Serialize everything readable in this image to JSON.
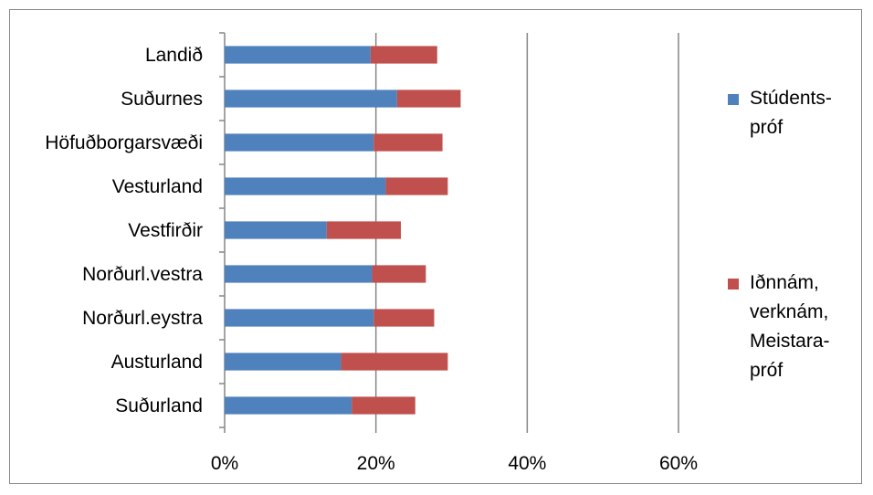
{
  "chart_data": {
    "type": "bar",
    "orientation": "horizontal",
    "stacked": true,
    "categories": [
      "Landið",
      "Suðurnes",
      "Höfuðborgarsvæði",
      "Vesturland",
      "Vestfirðir",
      "Norðurl.vestra",
      "Norðurl.eystra",
      "Austurland",
      "Suðurland"
    ],
    "series": [
      {
        "name": "Stúdents-\npróf",
        "color": "#4f81bd",
        "values": [
          19.3,
          22.8,
          19.7,
          21.3,
          13.5,
          19.5,
          19.7,
          15.4,
          16.8
        ]
      },
      {
        "name": "Iðnnám,\nverknám,\nMeistara-\npróf",
        "color": "#c0504d",
        "values": [
          8.8,
          8.4,
          9.1,
          8.2,
          9.8,
          7.1,
          8.0,
          14.1,
          8.4
        ]
      }
    ],
    "xticks": [
      "0%",
      "20%",
      "40%",
      "60%"
    ],
    "xlim": [
      0,
      60
    ],
    "grid": true,
    "legend_position": "right"
  }
}
